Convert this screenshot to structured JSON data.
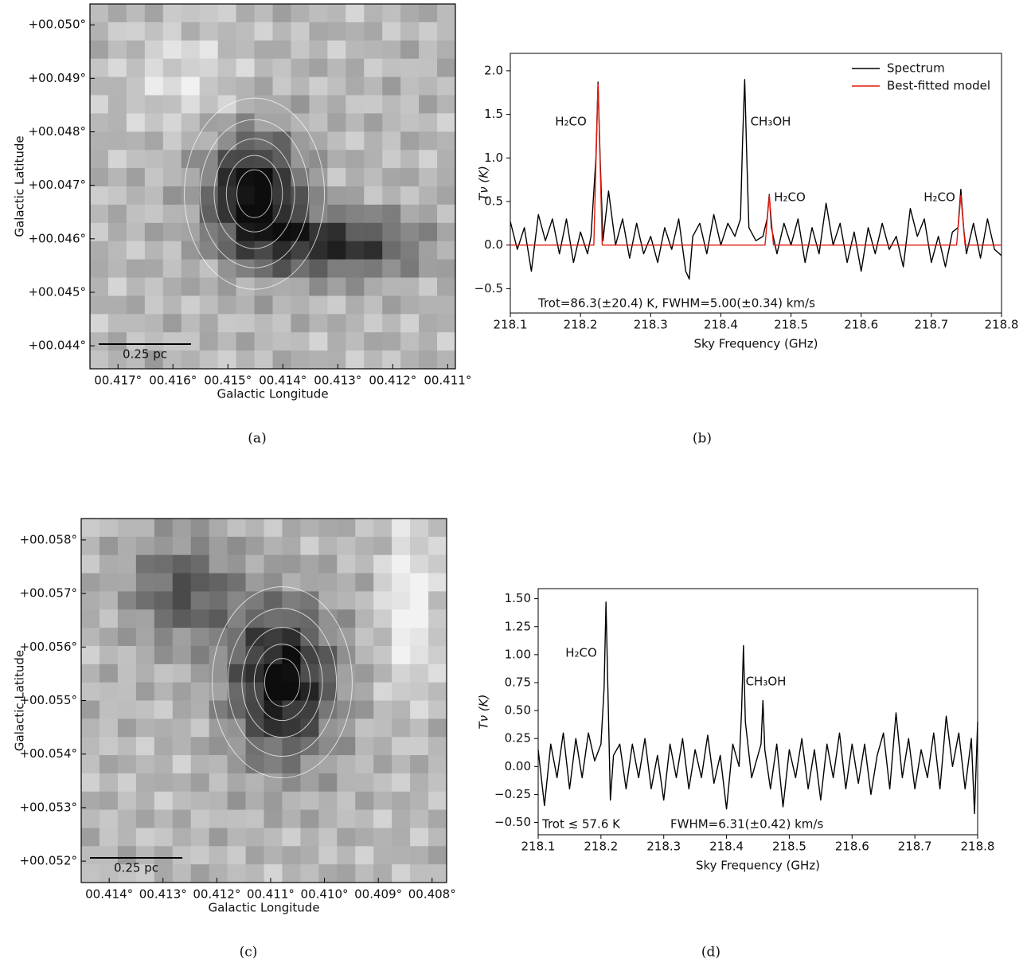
{
  "chart_data": [
    {
      "type": "line",
      "caption": "(b)",
      "xlabel": "Sky Frequency (GHz)",
      "ylabel": "Tν (K)",
      "xlim": [
        218.1,
        218.8
      ],
      "ylim": [
        -0.78,
        2.2
      ],
      "xticks": [
        218.1,
        218.2,
        218.3,
        218.4,
        218.5,
        218.6,
        218.7,
        218.8
      ],
      "yticks": [
        {
          "value": -0.5,
          "label": "−0.5"
        },
        {
          "value": 0,
          "label": "0.0"
        },
        {
          "value": 0.5,
          "label": "0.5"
        },
        {
          "value": 1,
          "label": "1.0"
        },
        {
          "value": 1.5,
          "label": "1.5"
        },
        {
          "value": 2,
          "label": "2.0"
        }
      ],
      "legend": "upper right",
      "annotations": [
        "H₂CO",
        "CH₃OH",
        "H₂CO",
        "H₂CO",
        "Trot=86.3(±20.4) K,  FWHM=5.00(±0.34) km/s"
      ],
      "series": [
        {
          "name": "Spectrum",
          "color": "#000000",
          "x": [
            218.1,
            218.11,
            218.12,
            218.13,
            218.14,
            218.15,
            218.16,
            218.17,
            218.18,
            218.19,
            218.2,
            218.21,
            218.215,
            218.222,
            218.225,
            218.228,
            218.232,
            218.24,
            218.25,
            218.26,
            218.27,
            218.28,
            218.29,
            218.3,
            218.31,
            218.32,
            218.33,
            218.34,
            218.35,
            218.355,
            218.36,
            218.37,
            218.38,
            218.39,
            218.4,
            218.41,
            218.42,
            218.428,
            218.431,
            218.434,
            218.437,
            218.44,
            218.45,
            218.46,
            218.466,
            218.469,
            218.472,
            218.48,
            218.49,
            218.5,
            218.51,
            218.52,
            218.53,
            218.54,
            218.55,
            218.56,
            218.57,
            218.58,
            218.59,
            218.6,
            218.61,
            218.62,
            218.63,
            218.64,
            218.65,
            218.66,
            218.67,
            218.68,
            218.69,
            218.7,
            218.71,
            218.72,
            218.73,
            218.738,
            218.742,
            218.746,
            218.75,
            218.76,
            218.77,
            218.78,
            218.79,
            218.8
          ],
          "values": [
            0.27,
            -0.05,
            0.2,
            -0.3,
            0.35,
            0.05,
            0.3,
            -0.1,
            0.3,
            -0.2,
            0.15,
            -0.1,
            0.1,
            1.0,
            1.87,
            1.0,
            0.05,
            0.62,
            0.0,
            0.3,
            -0.15,
            0.25,
            -0.1,
            0.1,
            -0.2,
            0.2,
            -0.05,
            0.3,
            -0.3,
            -0.39,
            0.1,
            0.25,
            -0.1,
            0.35,
            0.0,
            0.25,
            0.1,
            0.3,
            1.2,
            1.9,
            1.0,
            0.2,
            0.05,
            0.1,
            0.3,
            0.58,
            0.2,
            -0.1,
            0.25,
            0.0,
            0.3,
            -0.2,
            0.2,
            -0.1,
            0.48,
            0.0,
            0.25,
            -0.2,
            0.15,
            -0.3,
            0.2,
            -0.1,
            0.25,
            -0.05,
            0.1,
            -0.25,
            0.42,
            0.1,
            0.3,
            -0.2,
            0.1,
            -0.25,
            0.15,
            0.2,
            0.64,
            0.2,
            -0.1,
            0.25,
            -0.15,
            0.3,
            -0.05,
            -0.12
          ]
        },
        {
          "name": "Best-fitted model",
          "color": "#e0190f",
          "x": [
            218.1,
            218.219,
            218.225,
            218.231,
            218.463,
            218.469,
            218.475,
            218.736,
            218.742,
            218.748,
            218.8
          ],
          "values": [
            0,
            0,
            1.85,
            0,
            0,
            0.57,
            0,
            0,
            0.57,
            0,
            0
          ]
        }
      ]
    },
    {
      "type": "line",
      "caption": "(d)",
      "xlabel": "Sky Frequency (GHz)",
      "ylabel": "Tν (K)",
      "xlim": [
        218.1,
        218.8
      ],
      "ylim": [
        -0.61,
        1.59
      ],
      "xticks": [
        218.1,
        218.2,
        218.3,
        218.4,
        218.5,
        218.6,
        218.7,
        218.8
      ],
      "yticks": [
        {
          "value": -0.5,
          "label": "−0.50"
        },
        {
          "value": -0.25,
          "label": "−0.25"
        },
        {
          "value": 0,
          "label": "0.00"
        },
        {
          "value": 0.25,
          "label": "0.25"
        },
        {
          "value": 0.5,
          "label": "0.50"
        },
        {
          "value": 0.75,
          "label": "0.75"
        },
        {
          "value": 1,
          "label": "1.00"
        },
        {
          "value": 1.25,
          "label": "1.25"
        },
        {
          "value": 1.5,
          "label": "1.50"
        }
      ],
      "annotations": [
        "H₂CO",
        "CH₃OH",
        "Trot ≲ 57.6 K",
        "FWHM=6.31(±0.42) km/s"
      ],
      "series": [
        {
          "name": "Spectrum",
          "color": "#000000",
          "x": [
            218.1,
            218.11,
            218.12,
            218.13,
            218.14,
            218.15,
            218.16,
            218.17,
            218.18,
            218.19,
            218.2,
            218.205,
            218.208,
            218.211,
            218.215,
            218.22,
            218.23,
            218.24,
            218.25,
            218.26,
            218.27,
            218.28,
            218.29,
            218.3,
            218.31,
            218.32,
            218.33,
            218.34,
            218.35,
            218.36,
            218.37,
            218.38,
            218.39,
            218.4,
            218.41,
            218.42,
            218.424,
            218.427,
            218.43,
            218.44,
            218.45,
            218.455,
            218.458,
            218.461,
            218.47,
            218.48,
            218.49,
            218.5,
            218.51,
            218.52,
            218.53,
            218.54,
            218.55,
            218.56,
            218.57,
            218.58,
            218.59,
            218.6,
            218.61,
            218.62,
            218.63,
            218.64,
            218.65,
            218.66,
            218.67,
            218.68,
            218.69,
            218.7,
            218.71,
            218.72,
            218.73,
            218.74,
            218.75,
            218.76,
            218.77,
            218.78,
            218.79,
            218.795,
            218.8
          ],
          "values": [
            0.15,
            -0.35,
            0.2,
            -0.1,
            0.3,
            -0.2,
            0.25,
            -0.1,
            0.3,
            0.05,
            0.2,
            0.7,
            1.47,
            0.7,
            -0.3,
            0.1,
            0.2,
            -0.2,
            0.2,
            -0.1,
            0.25,
            -0.2,
            0.1,
            -0.3,
            0.2,
            -0.1,
            0.25,
            -0.2,
            0.15,
            -0.1,
            0.28,
            -0.15,
            0.1,
            -0.38,
            0.2,
            0.0,
            0.5,
            1.08,
            0.4,
            -0.1,
            0.1,
            0.2,
            0.59,
            0.15,
            -0.2,
            0.2,
            -0.36,
            0.15,
            -0.1,
            0.25,
            -0.2,
            0.15,
            -0.3,
            0.2,
            -0.1,
            0.3,
            -0.2,
            0.2,
            -0.15,
            0.2,
            -0.25,
            0.1,
            0.3,
            -0.2,
            0.48,
            -0.1,
            0.25,
            -0.2,
            0.15,
            -0.1,
            0.3,
            -0.2,
            0.45,
            0.0,
            0.3,
            -0.2,
            0.25,
            -0.42,
            0.4
          ]
        }
      ]
    }
  ],
  "images": [
    {
      "caption": "(a)",
      "xlabel": "Galactic Longitude",
      "ylabel": "Galactic Latitude",
      "scalebar": "0.25 pc",
      "xlim": [
        0.41751,
        0.41086
      ],
      "ylim": [
        0.04357,
        0.05039
      ],
      "xticks": [
        {
          "value": 0.417,
          "label": "00.417°"
        },
        {
          "value": 0.416,
          "label": "00.416°"
        },
        {
          "value": 0.415,
          "label": "00.415°"
        },
        {
          "value": 0.414,
          "label": "00.414°"
        },
        {
          "value": 0.413,
          "label": "00.413°"
        },
        {
          "value": 0.412,
          "label": "00.412°"
        },
        {
          "value": 0.411,
          "label": "00.411°"
        }
      ],
      "yticks": [
        {
          "value": 0.044,
          "label": "+00.044°"
        },
        {
          "value": 0.045,
          "label": "+00.045°"
        },
        {
          "value": 0.046,
          "label": "+00.046°"
        },
        {
          "value": 0.047,
          "label": "+00.047°"
        },
        {
          "value": 0.048,
          "label": "+00.048°"
        },
        {
          "value": 0.049,
          "label": "+00.049°"
        },
        {
          "value": 0.05,
          "label": "+00.050°"
        }
      ]
    },
    {
      "caption": "(c)",
      "xlabel": "Galactic Longitude",
      "ylabel": "Galactic Latitude",
      "scalebar": "0.25 pc",
      "xlim": [
        0.41452,
        0.40773
      ],
      "ylim": [
        0.0516,
        0.0584
      ],
      "xticks": [
        {
          "value": 0.414,
          "label": "00.414°"
        },
        {
          "value": 0.413,
          "label": "00.413°"
        },
        {
          "value": 0.412,
          "label": "00.412°"
        },
        {
          "value": 0.411,
          "label": "00.411°"
        },
        {
          "value": 0.41,
          "label": "00.410°"
        },
        {
          "value": 0.409,
          "label": "00.409°"
        },
        {
          "value": 0.408,
          "label": "00.408°"
        }
      ],
      "yticks": [
        {
          "value": 0.052,
          "label": "+00.052°"
        },
        {
          "value": 0.053,
          "label": "+00.053°"
        },
        {
          "value": 0.054,
          "label": "+00.054°"
        },
        {
          "value": 0.055,
          "label": "+00.055°"
        },
        {
          "value": 0.056,
          "label": "+00.056°"
        },
        {
          "value": 0.057,
          "label": "+00.057°"
        },
        {
          "value": 0.058,
          "label": "+00.058°"
        }
      ]
    }
  ]
}
